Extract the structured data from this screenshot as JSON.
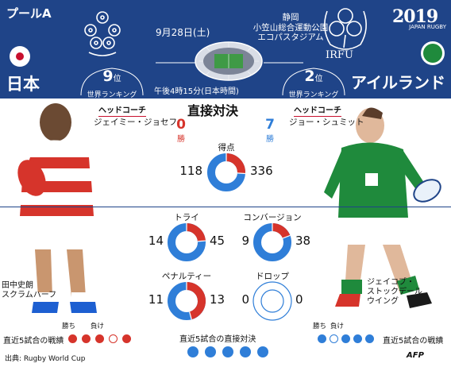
{
  "header": {
    "pool": "プールA",
    "date": "9月28日(土)",
    "venue_lines": [
      "静岡",
      "小笠山総合運動公園",
      "エコパスタジアム"
    ],
    "kickoff": "午後4時15分(日本時間)",
    "wc_logo": {
      "year": "2019",
      "text": "JAPAN RUGBY"
    },
    "irfu": "IRFU"
  },
  "teams": {
    "left": {
      "name": "日本",
      "rank_num": "9",
      "rank_suffix": "位",
      "rank_label": "世界ランキング",
      "color": "#d6342b"
    },
    "right": {
      "name": "アイルランド",
      "rank_num": "2",
      "rank_suffix": "位",
      "rank_label": "世界ランキング",
      "color": "#2f7ed8"
    }
  },
  "head_coach": {
    "label": "ヘッドコーチ",
    "left": "ジェイミー・ジョセフ",
    "right": "ジョー・シュミット"
  },
  "h2h": {
    "title": "直接対決",
    "left_wins": "0",
    "right_wins": "7",
    "wins_label": "勝"
  },
  "stats": [
    {
      "label": "得点",
      "left": 118,
      "right": 336
    },
    {
      "label": "トライ",
      "left": 14,
      "right": 45
    },
    {
      "label": "コンバージョン",
      "left": 9,
      "right": 38
    },
    {
      "label": "ペナルティー",
      "left": 11,
      "right": 13
    },
    {
      "label": "ドロップ",
      "left": 0,
      "right": 0
    }
  ],
  "players": {
    "left": [
      "田中史朗",
      "スクラムハーフ"
    ],
    "right": [
      "ジェイコブ・",
      "ストックデール",
      "ウイング"
    ]
  },
  "records": {
    "left_label": "直近5試合の戦績",
    "right_label": "直近5試合の戦績",
    "h2h_label": "直近5試合の直接対決",
    "win": "勝ち",
    "loss": "負け",
    "left_results": [
      "W",
      "W",
      "W",
      "L",
      "W"
    ],
    "right_results": [
      "W",
      "L",
      "W",
      "W",
      "W"
    ],
    "h2h_results": [
      "R",
      "R",
      "R",
      "R",
      "R"
    ]
  },
  "footer": {
    "source": "出典: Rugby World Cup",
    "agency": "AFP"
  }
}
